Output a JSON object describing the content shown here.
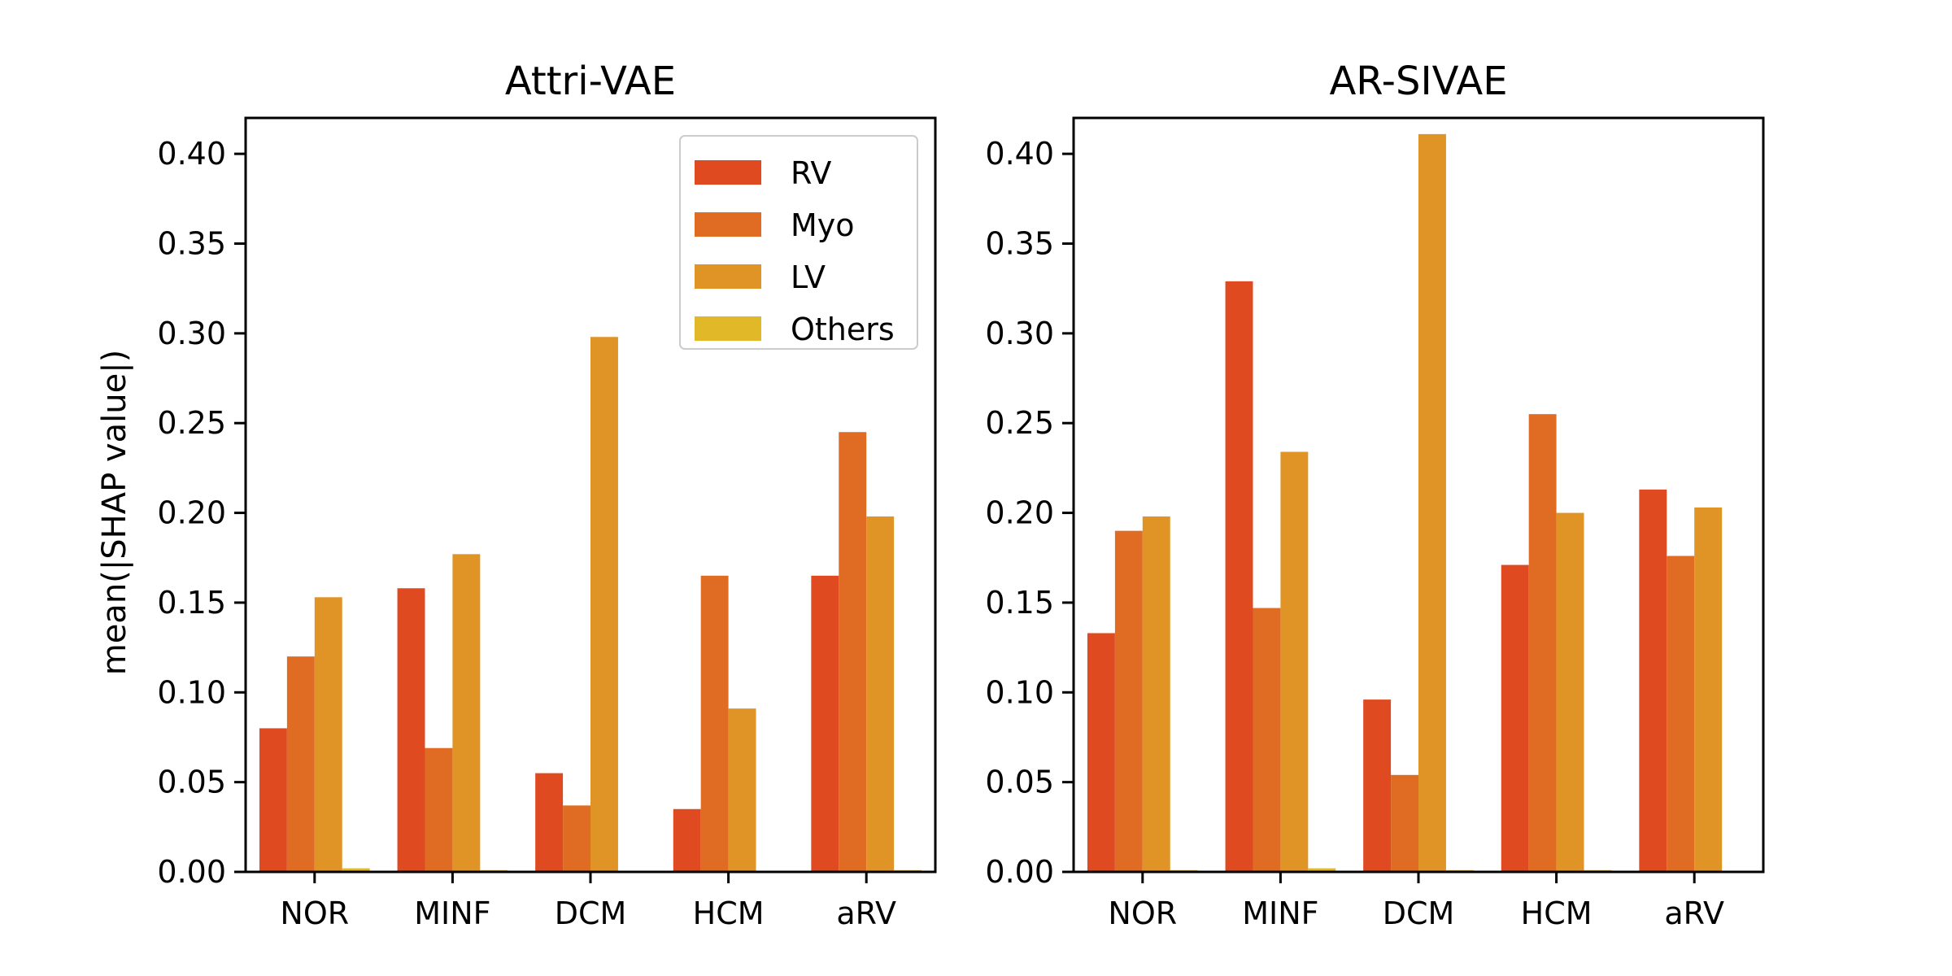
{
  "chart_data": [
    {
      "type": "bar",
      "title": "Attri-VAE",
      "xlabel": "",
      "ylabel": "mean(|SHAP value|)",
      "ylim": [
        0,
        0.42
      ],
      "yticks": [
        "0.00",
        "0.05",
        "0.10",
        "0.15",
        "0.20",
        "0.25",
        "0.30",
        "0.35",
        "0.40"
      ],
      "categories": [
        "NOR",
        "MINF",
        "DCM",
        "HCM",
        "aRV"
      ],
      "series": [
        {
          "name": "RV",
          "color": "#e04a21",
          "values": [
            0.08,
            0.158,
            0.055,
            0.035,
            0.165
          ]
        },
        {
          "name": "Myo",
          "color": "#e06c24",
          "values": [
            0.12,
            0.069,
            0.037,
            0.165,
            0.245
          ]
        },
        {
          "name": "LV",
          "color": "#e09426",
          "values": [
            0.153,
            0.177,
            0.298,
            0.091,
            0.198
          ]
        },
        {
          "name": "Others",
          "color": "#e0b828",
          "values": [
            0.002,
            0.001,
            0.0,
            0.0,
            0.001
          ]
        }
      ],
      "legend": {
        "position": "top-right"
      }
    },
    {
      "type": "bar",
      "title": "AR-SIVAE",
      "xlabel": "",
      "ylabel": "",
      "ylim": [
        0,
        0.42
      ],
      "yticks": [
        "0.00",
        "0.05",
        "0.10",
        "0.15",
        "0.20",
        "0.25",
        "0.30",
        "0.35",
        "0.40"
      ],
      "categories": [
        "NOR",
        "MINF",
        "DCM",
        "HCM",
        "aRV"
      ],
      "series": [
        {
          "name": "RV",
          "color": "#e04a21",
          "values": [
            0.133,
            0.329,
            0.096,
            0.171,
            0.213
          ]
        },
        {
          "name": "Myo",
          "color": "#e06c24",
          "values": [
            0.19,
            0.147,
            0.054,
            0.255,
            0.176
          ]
        },
        {
          "name": "LV",
          "color": "#e09426",
          "values": [
            0.198,
            0.234,
            0.411,
            0.2,
            0.203
          ]
        },
        {
          "name": "Others",
          "color": "#e0b828",
          "values": [
            0.001,
            0.002,
            0.001,
            0.001,
            0.0
          ]
        }
      ]
    }
  ]
}
